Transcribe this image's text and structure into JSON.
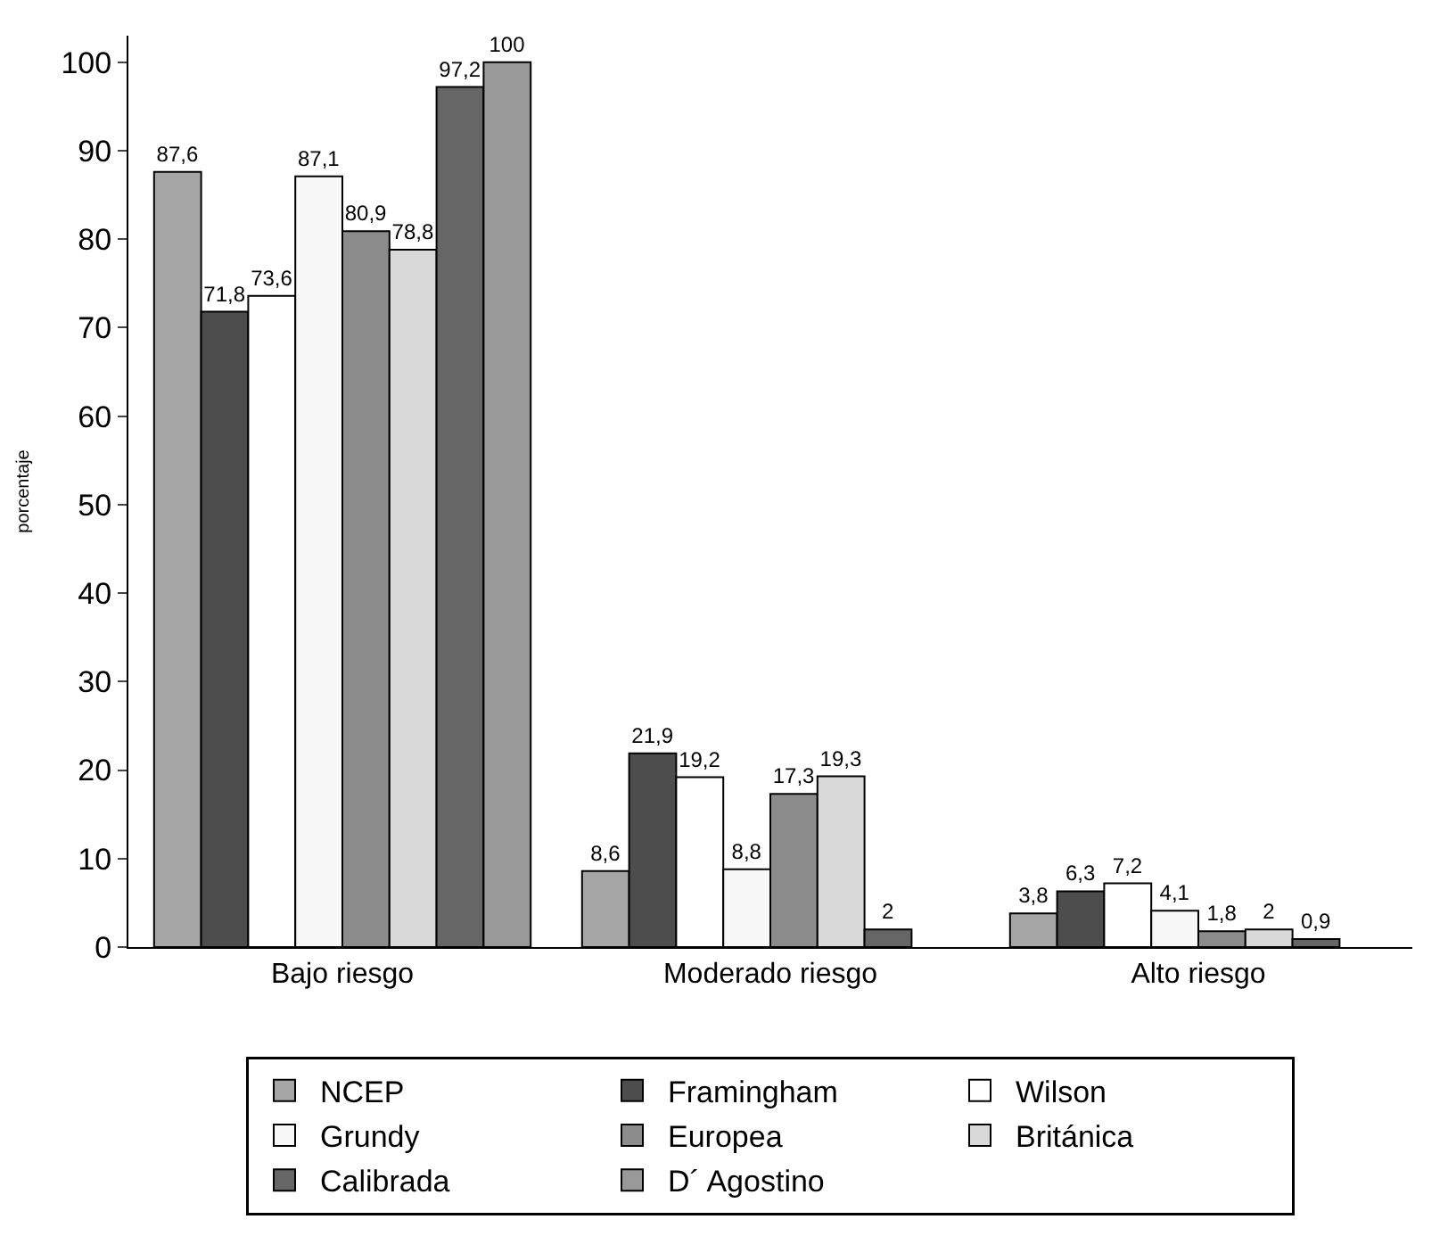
{
  "chart_data": {
    "type": "bar",
    "ylabel": "porcentaje",
    "categories": [
      "Bajo riesgo",
      "Moderado riesgo",
      "Alto riesgo"
    ],
    "series": [
      {
        "name": "NCEP",
        "color": "#a6a6a6",
        "values": [
          87.6,
          8.6,
          3.8
        ],
        "value_labels": [
          "87,6",
          "8,6",
          "3,8"
        ]
      },
      {
        "name": "Framingham",
        "color": "#4d4d4d",
        "values": [
          71.8,
          21.9,
          6.3
        ],
        "value_labels": [
          "71,8",
          "21,9",
          "6,3"
        ]
      },
      {
        "name": "Wilson",
        "color": "#ffffff",
        "values": [
          73.6,
          19.2,
          7.2
        ],
        "value_labels": [
          "73,6",
          "19,2",
          "7,2"
        ]
      },
      {
        "name": "Grundy",
        "color": "#f7f7f7",
        "values": [
          87.1,
          8.8,
          4.1
        ],
        "value_labels": [
          "87,1",
          "8,8",
          "4,1"
        ]
      },
      {
        "name": "Europea",
        "color": "#8c8c8c",
        "values": [
          80.9,
          17.3,
          1.8
        ],
        "value_labels": [
          "80,9",
          "17,3",
          "1,8"
        ]
      },
      {
        "name": "Británica",
        "color": "#d9d9d9",
        "values": [
          78.8,
          19.3,
          2
        ],
        "value_labels": [
          "78,8",
          "19,3",
          "2"
        ]
      },
      {
        "name": "Calibrada",
        "color": "#666666",
        "values": [
          97.2,
          2,
          0.9
        ],
        "value_labels": [
          "97,2",
          "2",
          "0,9"
        ]
      },
      {
        "name": "D´ Agostino",
        "color": "#999999",
        "values": [
          100,
          null,
          null
        ],
        "value_labels": [
          "100",
          null,
          null
        ]
      }
    ],
    "ylim": [
      0,
      103
    ],
    "yticks": [
      0,
      10,
      20,
      30,
      40,
      50,
      60,
      70,
      80,
      90,
      100
    ],
    "legend": "bottom"
  }
}
